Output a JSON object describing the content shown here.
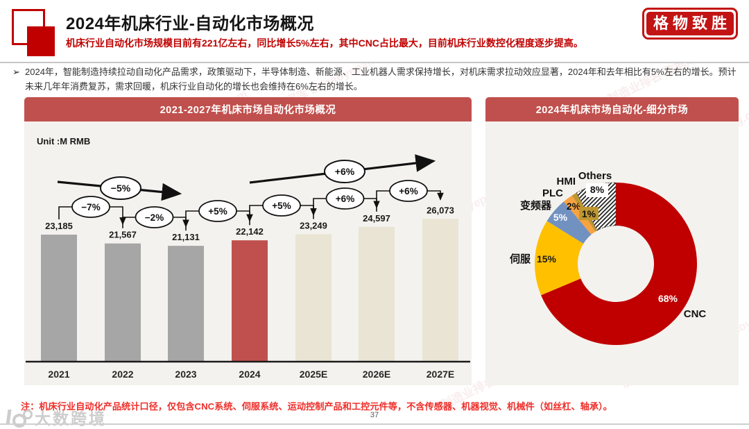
{
  "header": {
    "title": "2024年机床行业-自动化市场概况",
    "subtitle": "机床行业自动化市场规模目前有221亿左右，同比增长5%左右，其中CNC占比最大，目前机床行业数控化程度逐步提高。",
    "stamp": "格物致胜"
  },
  "intro": {
    "bullet": "➢",
    "text": "2024年，智能制造持续拉动自动化产品需求，政策驱动下，半导体制造、新能源、工业机器人需求保持增长，对机床需求拉动效应显著，2024年和去年相比有5%左右的增长。预计未来几年年消费复苏，需求回暖，机床行业自动化的增长也会维持在6%左右的增长。"
  },
  "chart_data": [
    {
      "type": "bar",
      "title": "2021-2027年机床市场自动化市场概况",
      "unit_label": "Unit :M RMB",
      "categories": [
        "2021",
        "2022",
        "2023",
        "2024",
        "2025E",
        "2026E",
        "2027E"
      ],
      "values": [
        23185,
        21567,
        21131,
        22142,
        23249,
        24597,
        26073
      ],
      "value_labels": [
        "23,185",
        "21,567",
        "21,131",
        "22,142",
        "23,249",
        "24,597",
        "26,073"
      ],
      "yoy_growth_labels": [
        "−7%",
        "−2%",
        "+5%",
        "+5%",
        "+6%",
        "+6%"
      ],
      "trend_annotations": [
        {
          "label": "−5%",
          "direction": "down",
          "span": "2021-2023"
        },
        {
          "label": "+6%",
          "direction": "up",
          "span": "2024-2027E"
        }
      ],
      "bar_colors": [
        "#a6a6a6",
        "#a6a6a6",
        "#a6a6a6",
        "#c0504d",
        "#e9e4d3",
        "#e9e4d3",
        "#e9e4d3"
      ],
      "ylim": [
        0,
        27000
      ],
      "grid": false
    },
    {
      "type": "donut",
      "title": "2024年机床市场自动化-细分市场",
      "order": "clockwise-from-top",
      "segments": [
        {
          "label": "CNC",
          "value": 68,
          "pct_label": "68%",
          "color": "#c00000"
        },
        {
          "label": "伺服",
          "value": 15,
          "pct_label": "15%",
          "color": "#ffc000"
        },
        {
          "label": "变频器",
          "value": 5,
          "pct_label": "5%",
          "color": "#7191c1"
        },
        {
          "label": "PLC",
          "value": 2,
          "pct_label": "2%",
          "color": "#f9a240"
        },
        {
          "label": "HMI",
          "value": 1,
          "pct_label": "1%",
          "color": "#bf9730"
        },
        {
          "label": "Others",
          "value": 8,
          "pct_label": "8%",
          "color": "hatch"
        }
      ]
    }
  ],
  "note": "注：机床行业自动化产品统计口径，仅包含CNC系统、伺服系统、运动控制产品和工控元件等，不含传感器、机器视觉、机械件（如丝杠、轴承）。",
  "footer": {
    "page_number": "37",
    "brand": "大数跨境"
  },
  "watermark": "制造业排名 数据库 zhizaoyepaiming.com"
}
